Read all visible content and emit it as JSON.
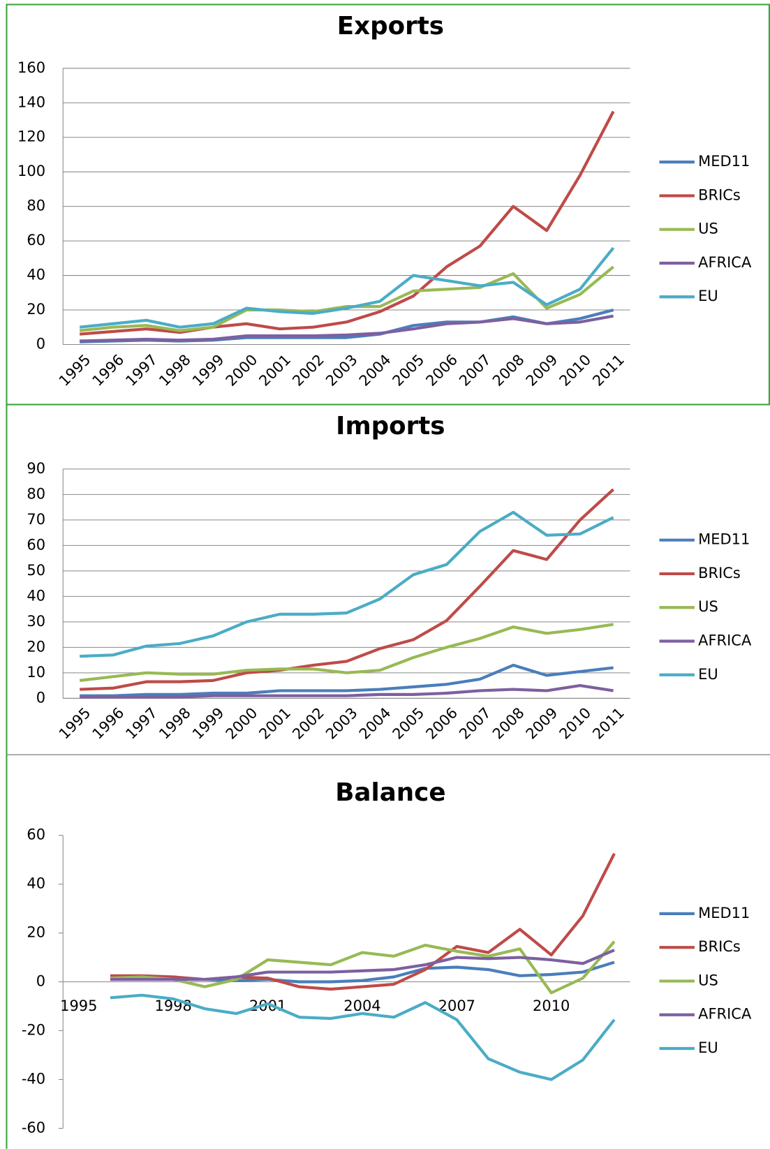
{
  "chart_data": [
    {
      "type": "line",
      "title": "Exports",
      "categories": [
        "1995",
        "1996",
        "1997",
        "1998",
        "1999",
        "2000",
        "2001",
        "2002",
        "2003",
        "2004",
        "2005",
        "2006",
        "2007",
        "2008",
        "2009",
        "2010",
        "2011"
      ],
      "ylim": [
        0,
        160
      ],
      "yticks": [
        0,
        20,
        40,
        60,
        80,
        100,
        120,
        140,
        160
      ],
      "grid": true,
      "legend": "right",
      "series": [
        {
          "name": "MED11",
          "color": "#4a7ebb",
          "values": [
            1.5,
            2,
            2.5,
            2,
            2.5,
            4,
            4,
            4,
            4,
            6,
            11,
            13,
            13,
            16,
            12,
            15,
            20
          ]
        },
        {
          "name": "BRICs",
          "color": "#be4b48",
          "values": [
            6,
            7.5,
            9,
            7,
            10,
            12,
            9,
            10,
            13,
            19,
            28,
            45,
            57,
            80,
            66,
            98,
            135
          ]
        },
        {
          "name": "US",
          "color": "#98b954",
          "values": [
            8,
            10,
            11,
            8,
            10,
            20,
            20,
            19,
            22,
            22,
            31,
            32,
            33,
            41,
            21,
            29,
            45
          ]
        },
        {
          "name": "AFRICA",
          "color": "#7d60a0",
          "values": [
            2,
            2.5,
            3,
            2.5,
            3,
            5,
            5,
            5,
            5.5,
            6.5,
            9,
            12,
            13,
            15,
            12,
            13,
            16.5
          ]
        },
        {
          "name": "EU",
          "color": "#4bacc6",
          "values": [
            10,
            12,
            14,
            10,
            12,
            21,
            19,
            18,
            21,
            25,
            40,
            37,
            34,
            36,
            23,
            32,
            56
          ]
        }
      ]
    },
    {
      "type": "line",
      "title": "Imports",
      "categories": [
        "1995",
        "1996",
        "1997",
        "1998",
        "1999",
        "2000",
        "2001",
        "2002",
        "2003",
        "2004",
        "2005",
        "2006",
        "2007",
        "2008",
        "2009",
        "2010",
        "2011"
      ],
      "ylim": [
        0,
        90
      ],
      "yticks": [
        0,
        10,
        20,
        30,
        40,
        50,
        60,
        70,
        80,
        90
      ],
      "grid": true,
      "legend": "right",
      "series": [
        {
          "name": "MED11",
          "color": "#4a7ebb",
          "values": [
            1,
            1,
            1.5,
            1.5,
            2,
            2,
            3,
            3,
            3,
            3.5,
            4.5,
            5.5,
            7.5,
            13,
            9,
            10.5,
            12
          ]
        },
        {
          "name": "BRICs",
          "color": "#be4b48",
          "values": [
            3.5,
            4,
            6.5,
            6.5,
            7,
            10,
            11,
            13,
            14.5,
            19.5,
            23,
            30.5,
            44,
            58,
            54.5,
            70,
            82
          ]
        },
        {
          "name": "US",
          "color": "#98b954",
          "values": [
            7,
            8.5,
            10,
            9.5,
            9.5,
            11,
            11.5,
            11.5,
            10,
            11,
            16,
            20,
            23.5,
            28,
            25.5,
            27,
            29
          ]
        },
        {
          "name": "AFRICA",
          "color": "#7d60a0",
          "values": [
            0.5,
            0.5,
            0.5,
            0.5,
            1,
            1,
            1,
            1,
            1,
            1.5,
            1.5,
            2,
            3,
            3.5,
            3,
            5,
            3
          ]
        },
        {
          "name": "EU",
          "color": "#4bacc6",
          "values": [
            16.5,
            17,
            20.5,
            21.5,
            24.5,
            30,
            33,
            33,
            33.5,
            39,
            48.5,
            52.5,
            65.5,
            73,
            64,
            64.5,
            71
          ]
        }
      ]
    },
    {
      "type": "line",
      "title": "Balance",
      "categories": [
        "1995",
        null,
        null,
        "1998",
        null,
        null,
        "2001",
        null,
        null,
        "2004",
        null,
        null,
        "2007",
        null,
        null,
        "2010",
        null,
        null
      ],
      "ylim": [
        -60,
        60
      ],
      "yticks": [
        -60,
        -40,
        -20,
        0,
        20,
        40,
        60
      ],
      "grid": false,
      "legend": "right",
      "series": [
        {
          "name": "MED11",
          "color": "#4a7ebb",
          "values": [
            null,
            1,
            1,
            1,
            1,
            0.5,
            1,
            0,
            0,
            0.5,
            2,
            5.5,
            6,
            5,
            2.5,
            3,
            4,
            8
          ]
        },
        {
          "name": "BRICs",
          "color": "#be4b48",
          "values": [
            null,
            2.5,
            2.5,
            2,
            1,
            2,
            1.5,
            -2,
            -3,
            -2,
            -1,
            5,
            14.5,
            12,
            21.5,
            11,
            27,
            52.5
          ]
        },
        {
          "name": "US",
          "color": "#98b954",
          "values": [
            null,
            1.5,
            2,
            1,
            -2,
            1,
            9,
            8,
            7,
            12,
            10.5,
            15,
            12.5,
            10.5,
            13.5,
            -4.5,
            1.5,
            16.5
          ]
        },
        {
          "name": "AFRICA",
          "color": "#7d60a0",
          "values": [
            null,
            1,
            1,
            1,
            1,
            2,
            4,
            4,
            4,
            4.5,
            5,
            7,
            10,
            9.5,
            10,
            9,
            7.5,
            13
          ]
        },
        {
          "name": "EU",
          "color": "#4bacc6",
          "values": [
            null,
            -6.5,
            -5.5,
            -7,
            -11,
            -13,
            -9,
            -14.5,
            -15,
            -13,
            -14.5,
            -8.5,
            -15.5,
            -31.5,
            -37,
            -40,
            -32,
            -15.5
          ]
        }
      ]
    }
  ]
}
